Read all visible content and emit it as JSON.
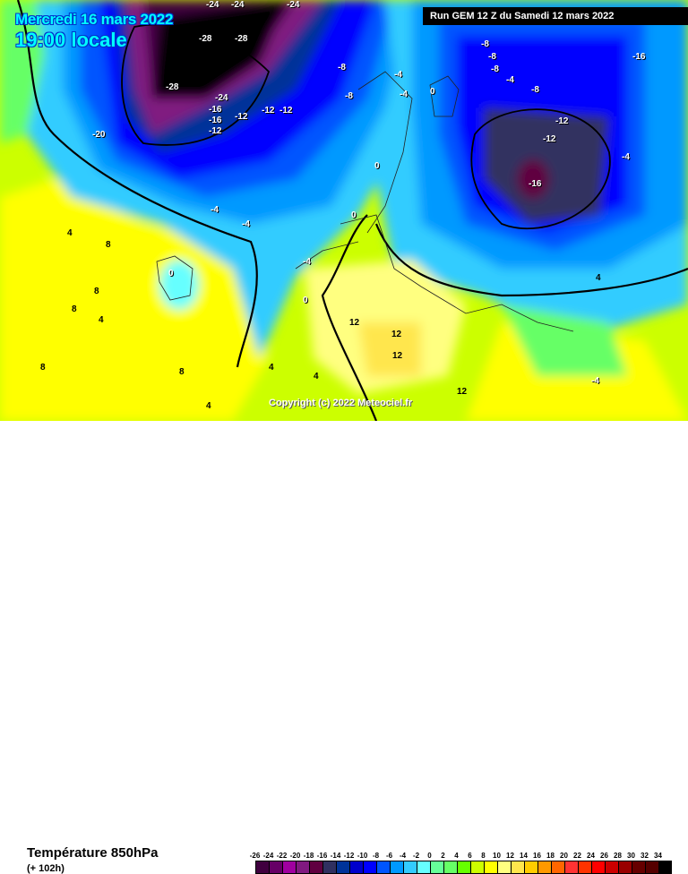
{
  "header": {
    "date": "Mercredi 16 mars 2022",
    "time": "19:00 locale",
    "run": "Run GEM 12 Z du Samedi 12 mars 2022"
  },
  "map": {
    "copyright": "Copyright (c) 2022 Meteociel.fr",
    "isotherm_labels": [
      "-28",
      "-28",
      "-28",
      "-24",
      "-24",
      "-24",
      "-24",
      "-16",
      "-16",
      "-12",
      "-12",
      "-12",
      "-12",
      "-20",
      "-8",
      "-8",
      "-8",
      "-8",
      "-8",
      "-4",
      "-4",
      "-4",
      "-4",
      "-4",
      "-4",
      "0",
      "0",
      "0",
      "0",
      "0",
      "4",
      "4",
      "4",
      "4",
      "8",
      "8",
      "8",
      "8",
      "12",
      "12",
      "12",
      "12",
      "-16",
      "-12",
      "-12",
      "-16",
      "-8",
      "-4",
      "-4",
      "4",
      "4",
      "8"
    ]
  },
  "footer": {
    "parameter": "Température 850hPa",
    "lead_time": "(+ 102h)"
  },
  "legend": {
    "labels": [
      "-26",
      "-24",
      "-22",
      "-20",
      "-18",
      "-16",
      "-14",
      "-12",
      "-10",
      "-8",
      "-6",
      "-4",
      "-2",
      "0",
      "2",
      "4",
      "6",
      "8",
      "10",
      "12",
      "14",
      "16",
      "18",
      "20",
      "22",
      "24",
      "26",
      "28",
      "30",
      "32",
      "34"
    ],
    "colors": [
      "#40003f",
      "#660066",
      "#a000a0",
      "#801a80",
      "#600040",
      "#303060",
      "#003399",
      "#0000cc",
      "#0000ff",
      "#0055ff",
      "#0099ff",
      "#33ccff",
      "#66ffff",
      "#66ff99",
      "#66ff66",
      "#66ff00",
      "#ccff00",
      "#ffff00",
      "#ffff80",
      "#ffe64d",
      "#ffcc00",
      "#ff9900",
      "#ff6600",
      "#ff3333",
      "#ff3300",
      "#ff0000",
      "#cc0000",
      "#990000",
      "#660000",
      "#550000",
      "#000000"
    ]
  }
}
